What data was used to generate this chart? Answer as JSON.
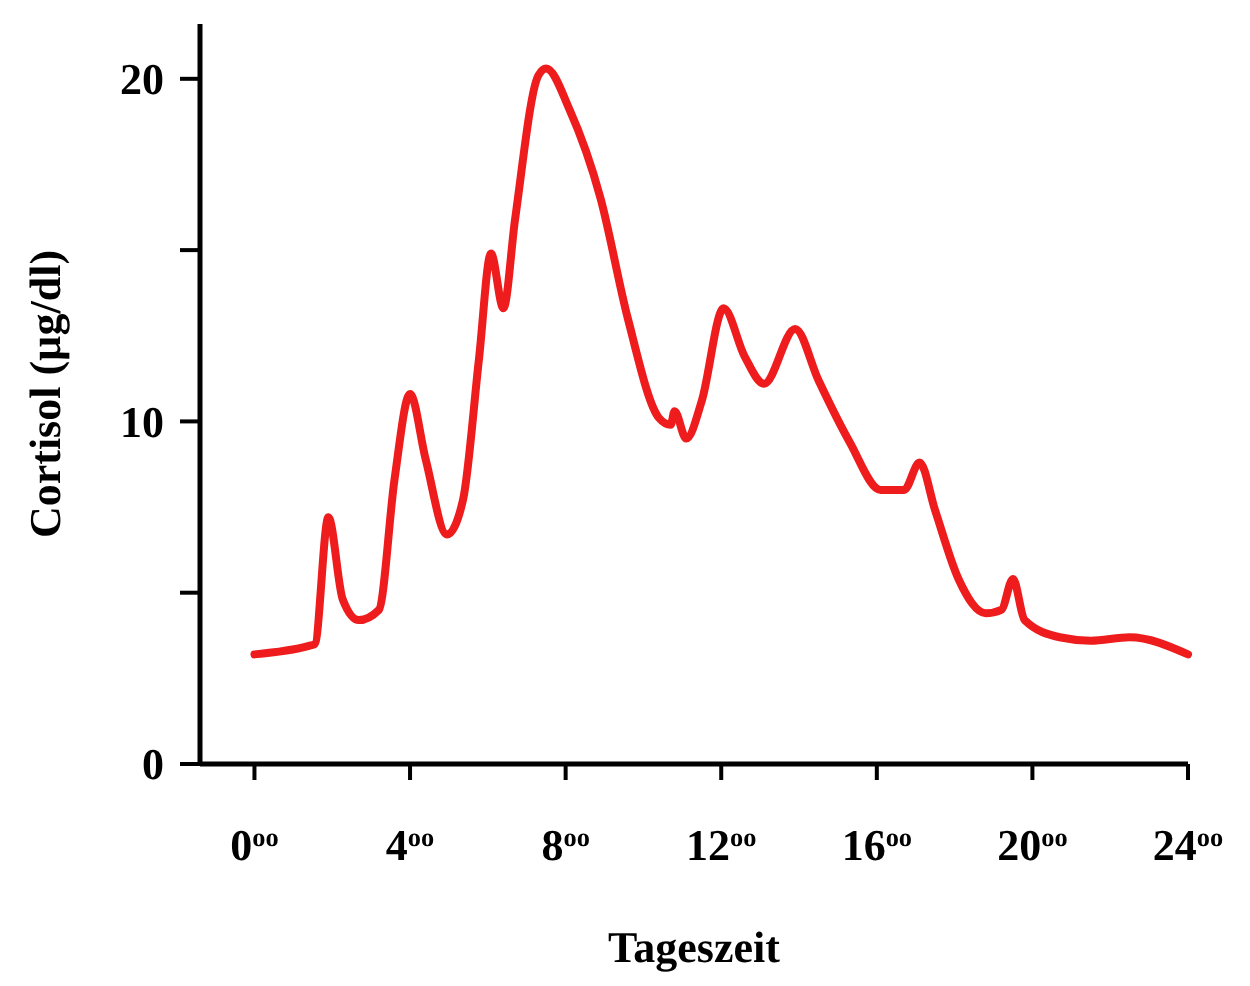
{
  "chart_data": {
    "type": "line",
    "xlabel": "Tageszeit",
    "ylabel": "Cortisol (µg/dl)",
    "xlim": [
      -1.4,
      24
    ],
    "xticks": [
      {
        "value": 0,
        "label": "0$^{oo}$"
      },
      {
        "value": 4,
        "label": "4$^{oo}$"
      },
      {
        "value": 8,
        "label": "8$^{oo}$"
      },
      {
        "value": 12,
        "label": "12$^{oo}$"
      },
      {
        "value": 16,
        "label": "16$^{oo}$"
      },
      {
        "value": 20,
        "label": "20$^{oo}$"
      },
      {
        "value": 24,
        "label": "24$^{oo}$"
      }
    ],
    "ylim": [
      0,
      21.6
    ],
    "yticks": [
      0,
      {
        "value": 5,
        "label": null
      },
      10,
      {
        "value": 15,
        "label": null
      },
      20
    ],
    "grid": false,
    "marker": "none",
    "line_style": "solid",
    "series": [
      {
        "color": "#ee1c1c",
        "x": [
          0,
          1.4,
          1.55,
          1.9,
          2.27,
          2.68,
          3.2,
          3.6,
          4.0,
          4.4,
          4.95,
          5.36,
          5.77,
          6.08,
          6.4,
          6.7,
          7.3,
          7.5,
          8.1,
          8.9,
          9.6,
          10.4,
          10.7,
          10.8,
          11.1,
          11.5,
          12.06,
          12.6,
          13.1,
          13.9,
          14.5,
          15.3,
          16.1,
          16.7,
          17.1,
          17.5,
          18.1,
          18.8,
          19.2,
          19.5,
          19.8,
          20.7,
          21.5,
          22.5,
          24
        ],
        "values": [
          3.2,
          3.45,
          3.5,
          7.2,
          4.8,
          4.2,
          4.5,
          8.3,
          10.8,
          8.9,
          6.7,
          7.7,
          11.8,
          14.9,
          13.3,
          15.9,
          20.1,
          20.3,
          19.1,
          16.5,
          13,
          10.1,
          9.9,
          10.3,
          9.5,
          10.6,
          13.3,
          11.9,
          11.1,
          12.7,
          11.2,
          9.4,
          8.0,
          8.0,
          8.8,
          7.4,
          5.4,
          4.4,
          4.5,
          5.4,
          4.2,
          3.7,
          3.6,
          3.7,
          3.2
        ]
      }
    ]
  }
}
